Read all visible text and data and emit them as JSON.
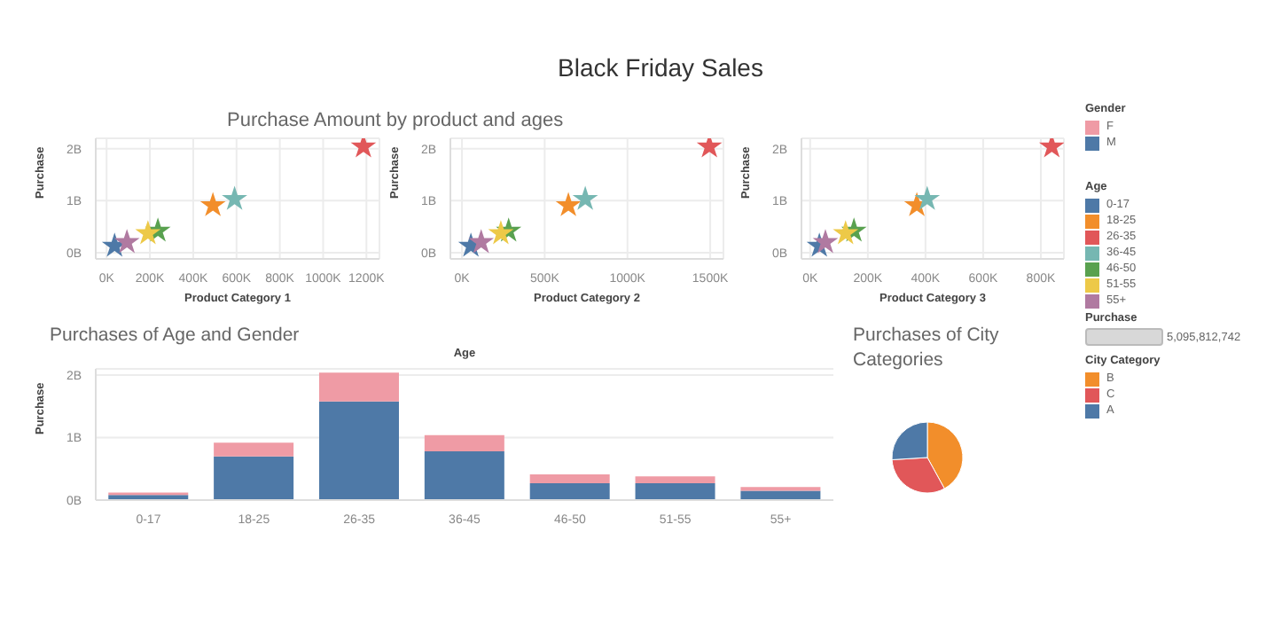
{
  "chart_data": [
    {
      "type": "scatter",
      "subtitle": "Purchase Amount by product and ages",
      "xlabel": "Product Category 1",
      "ylabel": "Purchase",
      "marker": "star",
      "grid": true,
      "legend": "right",
      "legend_title": "Age",
      "annotations": [
        "Purchase",
        "5,095,812,742"
      ],
      "xlim": [
        -50,
        1260
      ],
      "xticks": [
        {
          "value": 0,
          "label": "0K"
        },
        {
          "value": 200,
          "label": "200K"
        },
        {
          "value": 400,
          "label": "400K"
        },
        {
          "value": 600,
          "label": "600K"
        },
        {
          "value": 800,
          "label": "800K"
        },
        {
          "value": 1000,
          "label": "1000K"
        },
        {
          "value": 1200,
          "label": "1200K"
        }
      ],
      "ylim": [
        -0.12,
        2.2
      ],
      "yticks": [
        {
          "value": 0,
          "label": "0B"
        },
        {
          "value": 1,
          "label": "1B"
        },
        {
          "value": 2,
          "label": "2B"
        }
      ],
      "series": [
        {
          "name": "0-17",
          "color": "#4e79a7",
          "x": [
            37
          ],
          "values": [
            0.13
          ]
        },
        {
          "name": "18-25",
          "color": "#f28e2b",
          "x": [
            491
          ],
          "values": [
            0.91
          ]
        },
        {
          "name": "26-35",
          "color": "#e15759",
          "x": [
            1186
          ],
          "values": [
            2.04
          ]
        },
        {
          "name": "36-45",
          "color": "#76b7b2",
          "x": [
            591
          ],
          "values": [
            1.03
          ]
        },
        {
          "name": "46-50",
          "color": "#59a14f",
          "x": [
            237
          ],
          "values": [
            0.42
          ]
        },
        {
          "name": "51-55",
          "color": "#edc948",
          "x": [
            191
          ],
          "values": [
            0.37
          ]
        },
        {
          "name": "55+",
          "color": "#b07aa1",
          "x": [
            94
          ],
          "values": [
            0.2
          ]
        }
      ]
    },
    {
      "type": "scatter",
      "title": "Black Friday Sales",
      "xlabel": "Product Category 2",
      "ylabel": "Purchase",
      "marker": "star",
      "grid": true,
      "xlim": [
        -70,
        1580
      ],
      "xticks": [
        {
          "value": 0,
          "label": "0K"
        },
        {
          "value": 500,
          "label": "500K"
        },
        {
          "value": 1000,
          "label": "1000K"
        },
        {
          "value": 1500,
          "label": "1500K"
        }
      ],
      "ylim": [
        -0.12,
        2.2
      ],
      "yticks": [
        {
          "value": 0,
          "label": "0B"
        },
        {
          "value": 1,
          "label": "1B"
        },
        {
          "value": 2,
          "label": "2B"
        }
      ],
      "series": [
        {
          "color": "#4e79a7",
          "x": [
            54
          ],
          "values": [
            0.13
          ]
        },
        {
          "color": "#f28e2b",
          "x": [
            643
          ],
          "values": [
            0.91
          ]
        },
        {
          "color": "#e15759",
          "x": [
            1495
          ],
          "values": [
            2.04
          ]
        },
        {
          "color": "#76b7b2",
          "x": [
            745
          ],
          "values": [
            1.03
          ]
        },
        {
          "color": "#59a14f",
          "x": [
            282
          ],
          "values": [
            0.42
          ]
        },
        {
          "color": "#edc948",
          "x": [
            235
          ],
          "values": [
            0.37
          ]
        },
        {
          "color": "#b07aa1",
          "x": [
            116
          ],
          "values": [
            0.2
          ]
        }
      ]
    },
    {
      "type": "scatter",
      "xlabel": "Product Category 3",
      "ylabel": "Purchase",
      "marker": "star",
      "grid": true,
      "xlim": [
        -30,
        880
      ],
      "xticks": [
        {
          "value": 0,
          "label": "0K"
        },
        {
          "value": 200,
          "label": "200K"
        },
        {
          "value": 400,
          "label": "400K"
        },
        {
          "value": 600,
          "label": "600K"
        },
        {
          "value": 800,
          "label": "800K"
        }
      ],
      "ylim": [
        -0.12,
        2.2
      ],
      "yticks": [
        {
          "value": 0,
          "label": "0B"
        },
        {
          "value": 1,
          "label": "1B"
        },
        {
          "value": 2,
          "label": "2B"
        }
      ],
      "series": [
        {
          "color": "#4e79a7",
          "x": [
            32
          ],
          "values": [
            0.13
          ]
        },
        {
          "color": "#f28e2b",
          "x": [
            370
          ],
          "values": [
            0.91
          ]
        },
        {
          "color": "#e15759",
          "x": [
            838
          ],
          "values": [
            2.04
          ]
        },
        {
          "color": "#76b7b2",
          "x": [
            406
          ],
          "values": [
            1.03
          ]
        },
        {
          "color": "#59a14f",
          "x": [
            152
          ],
          "values": [
            0.42
          ]
        },
        {
          "color": "#edc948",
          "x": [
            123
          ],
          "values": [
            0.37
          ]
        },
        {
          "color": "#b07aa1",
          "x": [
            53
          ],
          "values": [
            0.2
          ]
        }
      ]
    },
    {
      "type": "bar",
      "title": "Purchases of Age and Gender",
      "xlabel": "Age",
      "ylabel": "Purchase",
      "stacked": true,
      "grid": "y",
      "legend": "right",
      "legend_title": "Gender",
      "categories": [
        "0-17",
        "18-25",
        "26-35",
        "36-45",
        "46-50",
        "51-55",
        "55+"
      ],
      "ylim": [
        0,
        2.1
      ],
      "yticks": [
        {
          "value": 0,
          "label": "0B"
        },
        {
          "value": 1,
          "label": "1B"
        },
        {
          "value": 2,
          "label": "2B"
        }
      ],
      "series": [
        {
          "name": "M",
          "color": "#4e79a7",
          "values": [
            0.08,
            0.7,
            1.58,
            0.78,
            0.27,
            0.27,
            0.15
          ]
        },
        {
          "name": "F",
          "color": "#ef9ba5",
          "values": [
            0.04,
            0.22,
            0.46,
            0.26,
            0.14,
            0.11,
            0.06
          ]
        }
      ]
    },
    {
      "type": "pie",
      "title": "Purchases of City Categories",
      "legend": "right",
      "legend_title": "City Category",
      "categories": [
        "B",
        "C",
        "A"
      ],
      "values": [
        42,
        32,
        26
      ],
      "colors": [
        "#f28e2b",
        "#e15759",
        "#4e79a7"
      ]
    }
  ]
}
